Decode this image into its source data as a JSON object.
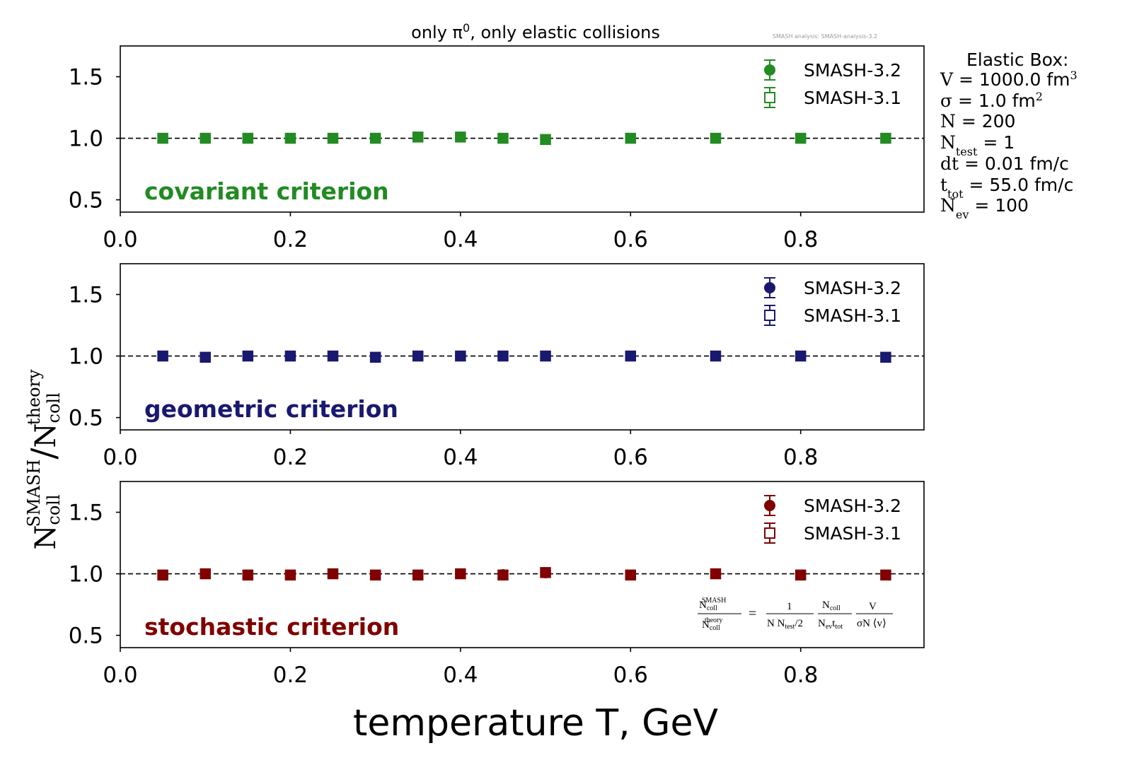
{
  "title": "only π⁰, only elastic collisions",
  "watermark": "SMASH analysis: SMASH-analysis-3.2",
  "xlabel": "temperature T, GeV",
  "ylabel": {
    "main": "N",
    "sup1": "SMASH",
    "sub1": "coll",
    "slash": "/",
    "sup2": "theory",
    "sub2": "coll"
  },
  "info_box": {
    "title": "Elastic Box:",
    "lines": [
      {
        "lhs": "V",
        "sub": "",
        "rhs": " = 1000.0 fm",
        "sup": "3"
      },
      {
        "lhs": "σ",
        "sub": "",
        "rhs": " = 1.0 fm",
        "sup": "2"
      },
      {
        "lhs": "N",
        "sub": "",
        "rhs": " = 200",
        "sup": ""
      },
      {
        "lhs": "N",
        "sub": "test",
        "rhs": " = 1",
        "sup": ""
      },
      {
        "lhs": "dt",
        "sub": "",
        "rhs": " = 0.01 fm/c",
        "sup": ""
      },
      {
        "lhs": "t",
        "sub": "tot",
        "rhs": " = 55.0 fm/c",
        "sup": ""
      },
      {
        "lhs": "N",
        "sub": "ev",
        "rhs": " = 100",
        "sup": ""
      }
    ]
  },
  "formula": {
    "lhs_num": "N",
    "lhs_num_sup": "SMASH",
    "lhs_num_sub": "coll",
    "lhs_den": "N",
    "lhs_den_sup": "theory",
    "lhs_den_sub": "coll",
    "eq": "=",
    "f1_num": "1",
    "f1_den": "N N",
    "f1_den_sub": "test",
    "f1_den_tail": "/2",
    "f2_num": "N",
    "f2_num_sub": "coll",
    "f2_den": "N",
    "f2_den_sub1": "ev",
    "f2_den_mid": "t",
    "f2_den_sub2": "tot",
    "f3_num": "V",
    "f3_den": "σN ⟨v⟩"
  },
  "colors": {
    "covariant": "#228b22",
    "geometric": "#191970",
    "stochastic": "#800000"
  },
  "chart_data": [
    {
      "type": "scatter",
      "panel_label": "covariant criterion",
      "color_key": "covariant",
      "x": [
        0.05,
        0.1,
        0.15,
        0.2,
        0.25,
        0.3,
        0.35,
        0.4,
        0.45,
        0.5,
        0.6,
        0.7,
        0.8,
        0.9
      ],
      "series": [
        {
          "name": "SMASH-3.2",
          "marker": "filled-circle",
          "values": [
            1.0,
            1.0,
            1.0,
            1.0,
            1.0,
            1.0,
            1.01,
            1.01,
            1.0,
            0.99,
            1.0,
            1.0,
            1.0,
            1.0
          ]
        },
        {
          "name": "SMASH-3.1",
          "marker": "open-square",
          "values": [
            1.0,
            1.0,
            1.0,
            1.0,
            1.0,
            1.0,
            1.01,
            1.01,
            1.0,
            0.99,
            1.0,
            1.0,
            1.0,
            1.0
          ]
        }
      ],
      "reference_line": 1.0,
      "xlim": [
        0.0,
        0.945
      ],
      "ylim": [
        0.4,
        1.75
      ],
      "xticks": [
        "0.0",
        "0.2",
        "0.4",
        "0.6",
        "0.8"
      ],
      "yticks": [
        "0.5",
        "1.0",
        "1.5"
      ],
      "legend": "top-right"
    },
    {
      "type": "scatter",
      "panel_label": "geometric criterion",
      "color_key": "geometric",
      "x": [
        0.05,
        0.1,
        0.15,
        0.2,
        0.25,
        0.3,
        0.35,
        0.4,
        0.45,
        0.5,
        0.6,
        0.7,
        0.8,
        0.9
      ],
      "series": [
        {
          "name": "SMASH-3.2",
          "marker": "filled-circle",
          "values": [
            1.0,
            0.99,
            1.0,
            1.0,
            1.0,
            0.99,
            1.0,
            1.0,
            1.0,
            1.0,
            1.0,
            1.0,
            1.0,
            0.99
          ]
        },
        {
          "name": "SMASH-3.1",
          "marker": "open-square",
          "values": [
            1.0,
            0.99,
            1.0,
            1.0,
            1.0,
            0.99,
            1.0,
            1.0,
            1.0,
            1.0,
            1.0,
            1.0,
            1.0,
            0.99
          ]
        }
      ],
      "reference_line": 1.0,
      "xlim": [
        0.0,
        0.945
      ],
      "ylim": [
        0.4,
        1.75
      ],
      "xticks": [
        "0.0",
        "0.2",
        "0.4",
        "0.6",
        "0.8"
      ],
      "yticks": [
        "0.5",
        "1.0",
        "1.5"
      ],
      "legend": "top-right"
    },
    {
      "type": "scatter",
      "panel_label": "stochastic criterion",
      "color_key": "stochastic",
      "x": [
        0.05,
        0.1,
        0.15,
        0.2,
        0.25,
        0.3,
        0.35,
        0.4,
        0.45,
        0.5,
        0.6,
        0.7,
        0.8,
        0.9
      ],
      "series": [
        {
          "name": "SMASH-3.2",
          "marker": "filled-circle",
          "values": [
            0.99,
            1.0,
            0.99,
            0.99,
            1.0,
            0.99,
            0.99,
            1.0,
            1.0,
            1.0,
            0.99,
            1.0,
            0.99,
            0.99
          ]
        },
        {
          "name": "SMASH-3.1",
          "marker": "open-square",
          "values": [
            0.99,
            1.0,
            0.99,
            0.99,
            1.0,
            0.99,
            0.99,
            1.0,
            0.99,
            1.01,
            0.99,
            1.0,
            0.99,
            0.99
          ]
        }
      ],
      "reference_line": 1.0,
      "xlim": [
        0.0,
        0.945
      ],
      "ylim": [
        0.4,
        1.75
      ],
      "xticks": [
        "0.0",
        "0.2",
        "0.4",
        "0.6",
        "0.8"
      ],
      "yticks": [
        "0.5",
        "1.0",
        "1.5"
      ],
      "legend": "top-right"
    }
  ]
}
